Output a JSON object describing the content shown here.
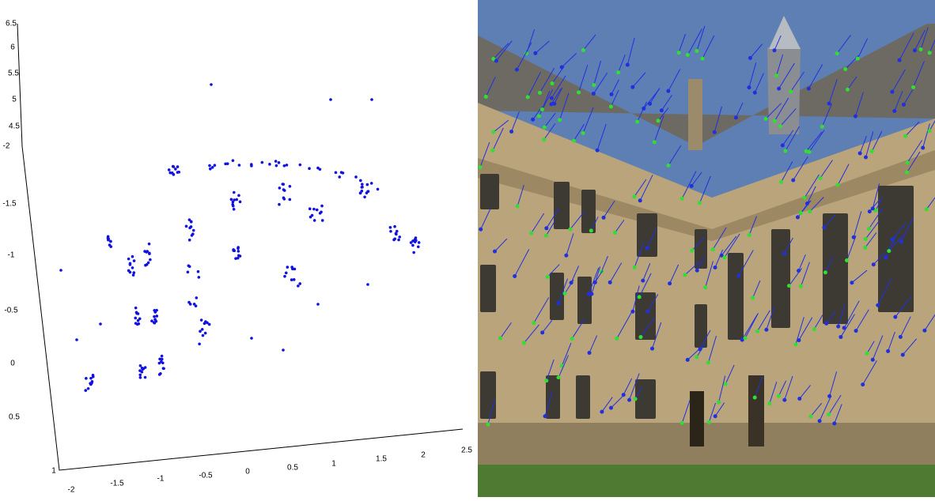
{
  "plot3d": {
    "z_ticks": [
      "6.5",
      "6",
      "5.5",
      "5",
      "4.5"
    ],
    "y_ticks": [
      "-2",
      "-1.5",
      "-1",
      "-0.5",
      "0",
      "0.5",
      "1"
    ],
    "x_ticks": [
      "-2",
      "-1.5",
      "-1",
      "-0.5",
      "0",
      "0.5",
      "1",
      "1.5",
      "2",
      "2.5"
    ]
  }
}
